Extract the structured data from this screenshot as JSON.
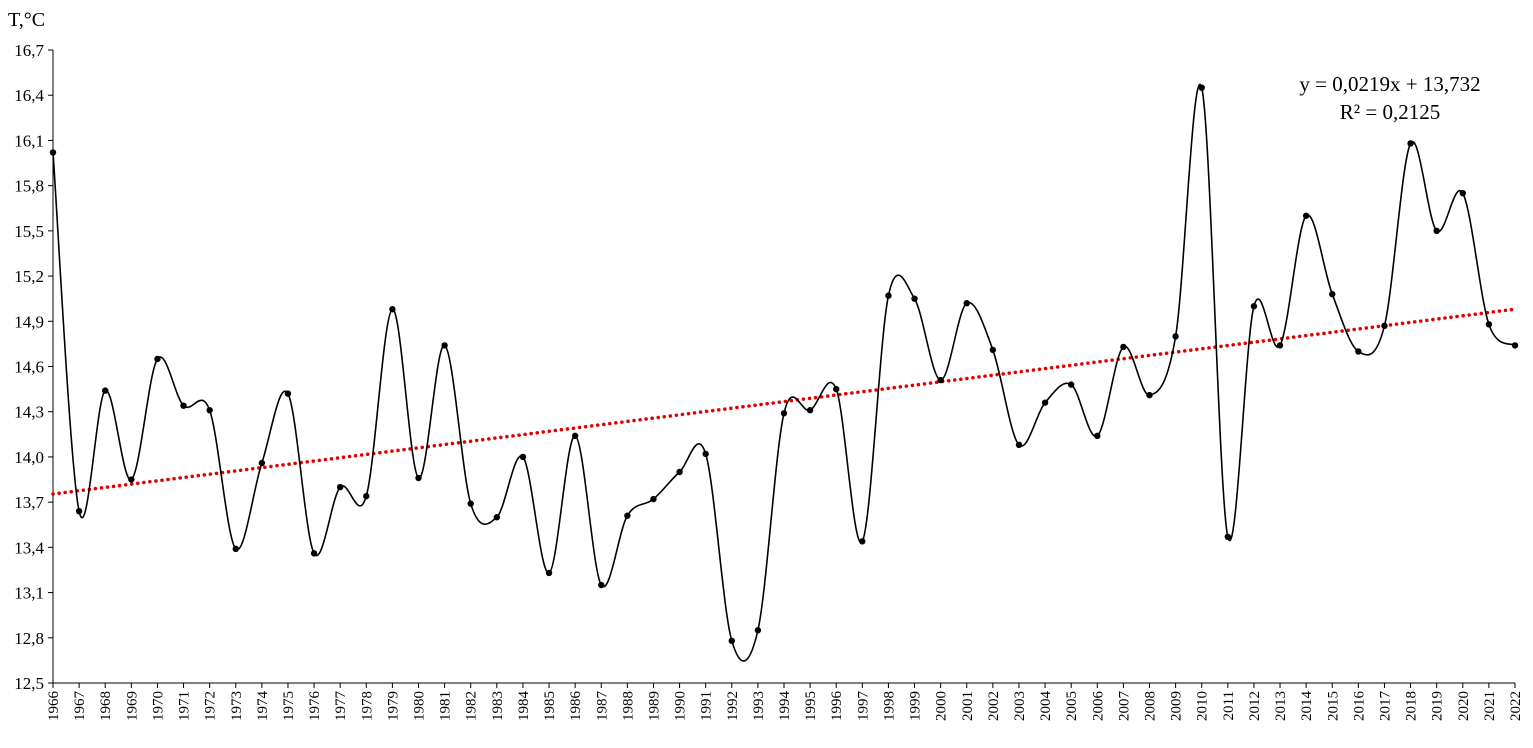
{
  "chart_data": {
    "type": "line",
    "ylabel": "T,°C",
    "xlabel": "",
    "ylim": [
      12.5,
      16.7
    ],
    "yticks": [
      "12,5",
      "12,8",
      "13,1",
      "13,4",
      "13,7",
      "14,0",
      "14,3",
      "14,6",
      "14,9",
      "15,2",
      "15,5",
      "15,8",
      "16,1",
      "16,4",
      "16,7"
    ],
    "categories": [
      "1966",
      "1967",
      "1968",
      "1969",
      "1970",
      "1971",
      "1972",
      "1973",
      "1974",
      "1975",
      "1976",
      "1977",
      "1978",
      "1979",
      "1980",
      "1981",
      "1982",
      "1983",
      "1984",
      "1985",
      "1986",
      "1987",
      "1988",
      "1989",
      "1990",
      "1991",
      "1992",
      "1993",
      "1994",
      "1995",
      "1996",
      "1997",
      "1998",
      "1999",
      "2000",
      "2001",
      "2002",
      "2003",
      "2004",
      "2005",
      "2006",
      "2007",
      "2008",
      "2009",
      "2010",
      "2011",
      "2012",
      "2013",
      "2014",
      "2015",
      "2016",
      "2017",
      "2018",
      "2019",
      "2020",
      "2021",
      "2022"
    ],
    "series": [
      {
        "name": "",
        "color": "#000000",
        "smooth": true,
        "values": [
          16.02,
          13.64,
          14.44,
          13.85,
          14.65,
          14.34,
          14.31,
          13.39,
          13.96,
          14.42,
          13.36,
          13.8,
          13.74,
          14.98,
          13.86,
          14.74,
          13.69,
          13.6,
          14.0,
          13.23,
          14.14,
          13.15,
          13.61,
          13.72,
          13.9,
          14.02,
          12.78,
          12.85,
          14.29,
          14.31,
          14.45,
          13.44,
          15.07,
          15.05,
          14.51,
          15.02,
          14.71,
          14.08,
          14.36,
          14.48,
          14.14,
          14.73,
          14.41,
          14.8,
          16.45,
          13.47,
          15.0,
          14.74,
          15.6,
          15.08,
          14.7,
          14.87,
          16.08,
          15.5,
          15.75,
          14.88,
          14.74
        ]
      }
    ],
    "trendline": {
      "type": "linear",
      "color": "#e00000",
      "style": "dotted",
      "slope": 0.0219,
      "intercept": 13.732,
      "equation": "y = 0,0219x + 13,732",
      "r_squared": "R² = 0,2125"
    },
    "grid": false,
    "legend": "none"
  }
}
